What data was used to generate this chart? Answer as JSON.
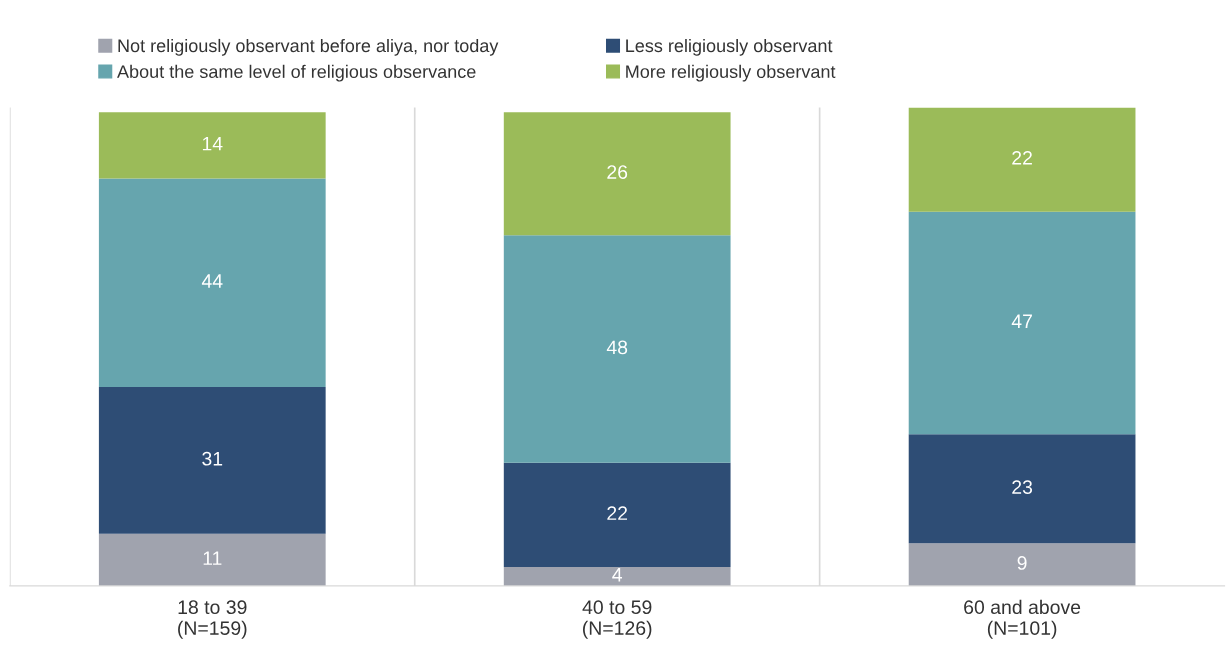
{
  "chart_data": {
    "type": "bar",
    "stacked": true,
    "data_labels": true,
    "legend": "top",
    "grid": false,
    "categories": [
      "18 to 39\n(N=159)",
      "40 to 59\n(N=126)",
      "60 and above\n(N=101)"
    ],
    "series": [
      {
        "name": "Not religiously observant before aliya, nor today",
        "color": "#a0a3ae",
        "values": [
          11,
          4,
          9
        ]
      },
      {
        "name": "Less religiously observant",
        "color": "#2e4d75",
        "values": [
          31,
          22,
          23
        ]
      },
      {
        "name": "About the same level of religious observance",
        "color": "#66a5ae",
        "values": [
          44,
          48,
          47
        ]
      },
      {
        "name": "More religiously observant",
        "color": "#9bbb59",
        "values": [
          14,
          26,
          22
        ]
      }
    ]
  }
}
